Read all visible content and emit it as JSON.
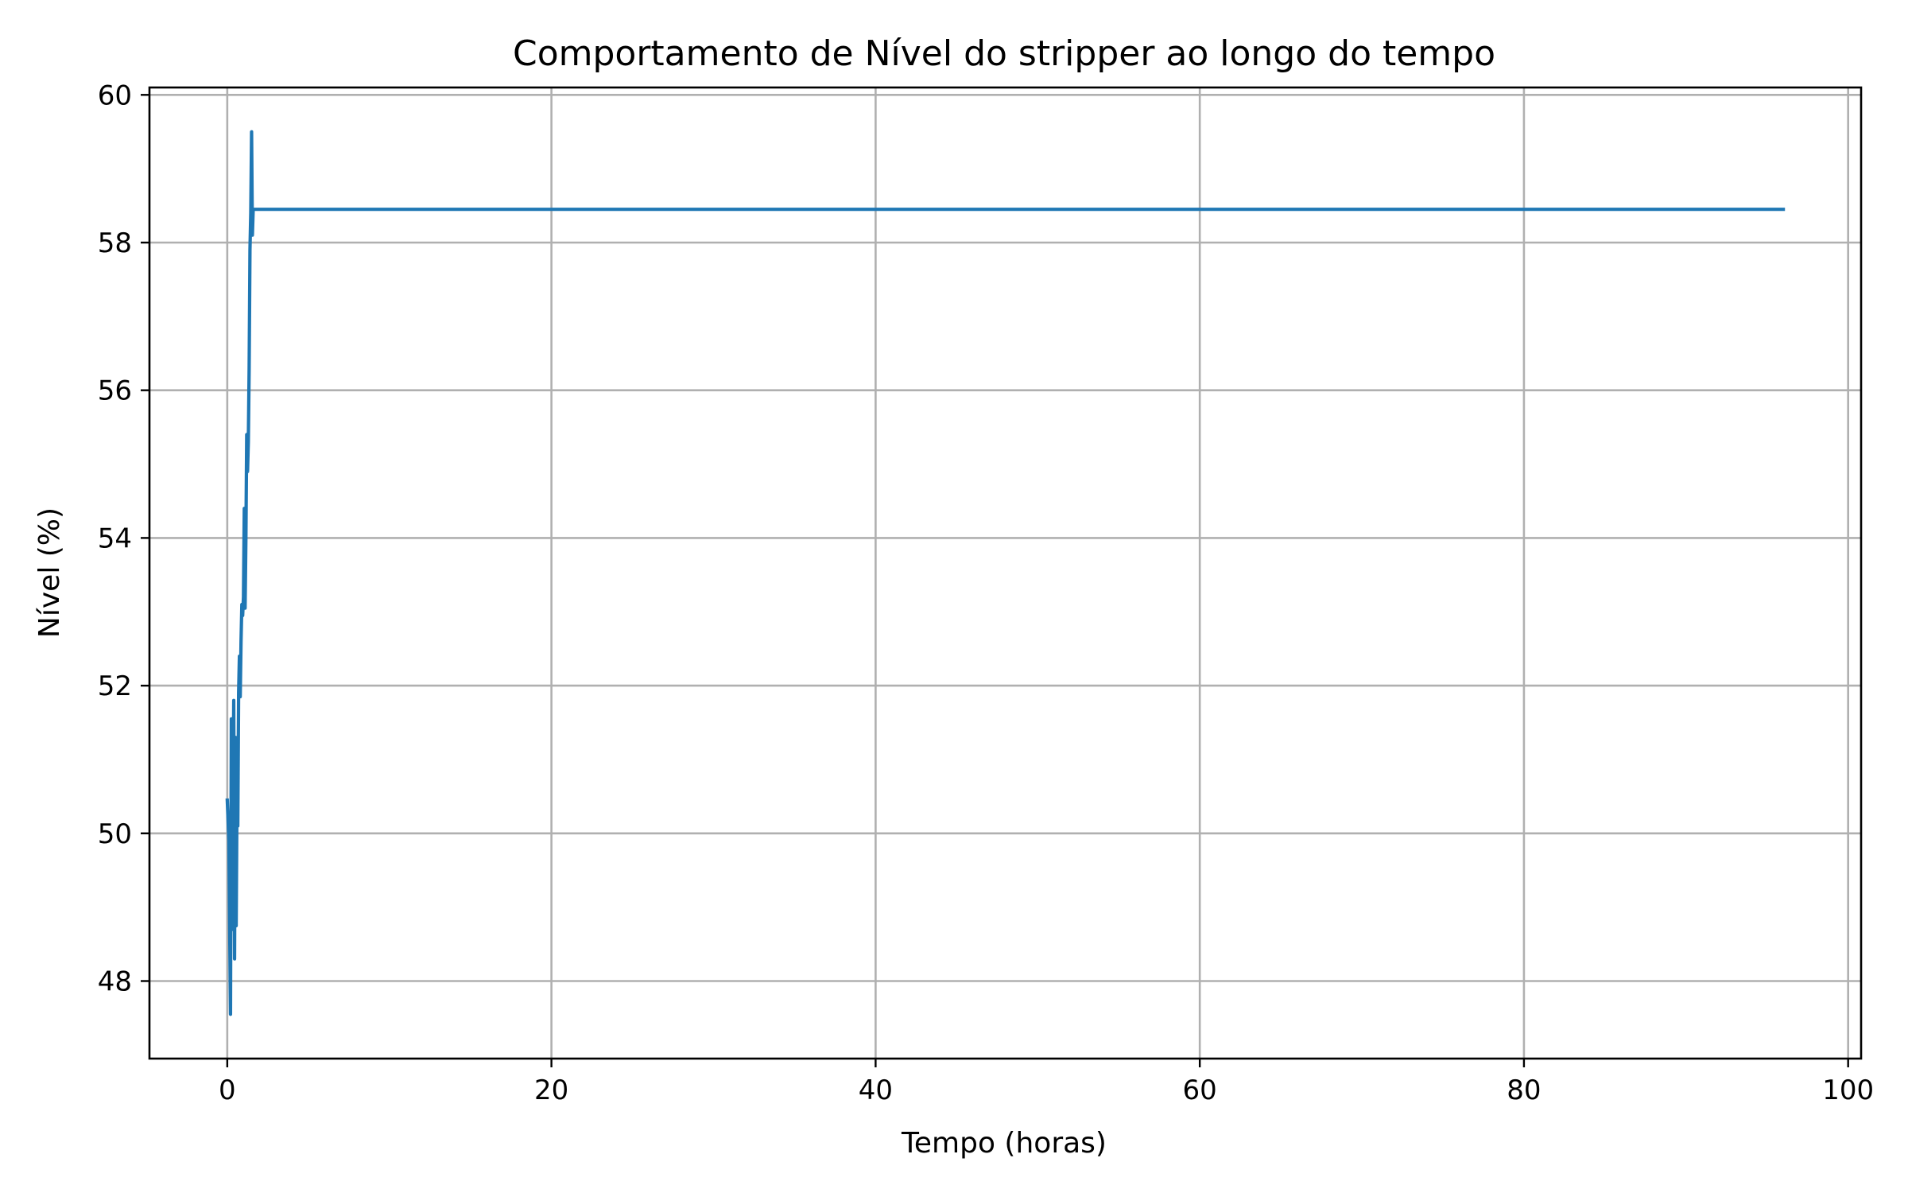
{
  "chart_data": {
    "type": "line",
    "title": "Comportamento de Nível do stripper ao longo do tempo",
    "xlabel": "Tempo (horas)",
    "ylabel": "Nível (%)",
    "xlim": [
      -4.8,
      100.8
    ],
    "ylim": [
      46.95,
      60.1
    ],
    "xticks": [
      0,
      20,
      40,
      60,
      80,
      100
    ],
    "yticks": [
      48,
      50,
      52,
      54,
      56,
      58,
      60
    ],
    "grid": true,
    "legend": "none",
    "series": [
      {
        "color": "#1f77b4",
        "x": [
          0.0,
          0.1,
          0.2,
          0.25,
          0.3,
          0.35,
          0.4,
          0.45,
          0.5,
          0.55,
          0.6,
          0.65,
          0.7,
          0.75,
          0.8,
          0.85,
          0.9,
          0.95,
          1.0,
          1.05,
          1.1,
          1.15,
          1.2,
          1.25,
          1.3,
          1.35,
          1.4,
          1.45,
          1.5,
          1.55,
          1.6,
          1.65,
          1.7,
          1.75,
          1.8,
          1.85,
          1.9,
          2.0,
          5,
          10,
          20,
          30,
          40,
          50,
          60,
          70,
          80,
          90,
          96
        ],
        "y": [
          50.45,
          49.9,
          47.55,
          51.55,
          48.7,
          50.2,
          51.8,
          48.3,
          51.3,
          48.75,
          50.5,
          50.1,
          51.9,
          52.4,
          51.85,
          52.6,
          53.1,
          52.95,
          53.2,
          54.4,
          53.05,
          54.0,
          55.4,
          54.9,
          55.3,
          56.3,
          57.9,
          58.4,
          59.5,
          58.1,
          58.45,
          58.45,
          58.45,
          58.45,
          58.45,
          58.45,
          58.45,
          58.45,
          58.45,
          58.45,
          58.45,
          58.45,
          58.45,
          58.45,
          58.45,
          58.45,
          58.45,
          58.45,
          58.45
        ]
      }
    ]
  }
}
